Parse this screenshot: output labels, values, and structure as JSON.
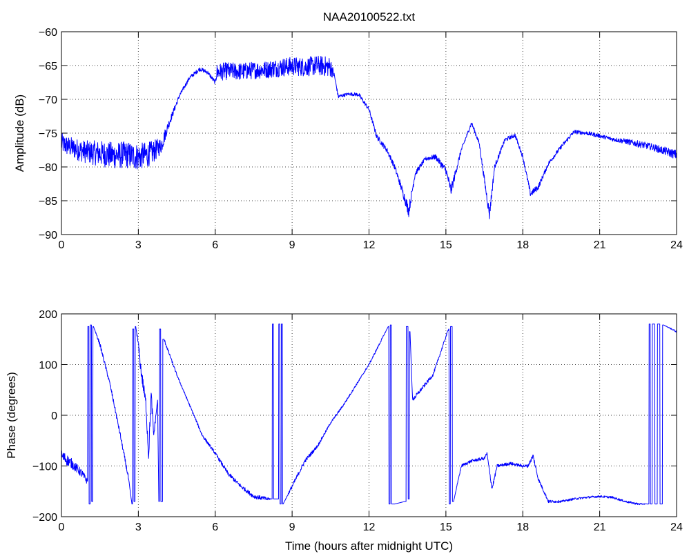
{
  "chart_data": [
    {
      "type": "line",
      "title": "NAA20100522.txt",
      "xlabel": "",
      "ylabel": "Amplitude (dB)",
      "xlim": [
        0,
        24
      ],
      "ylim": [
        -90,
        -60
      ],
      "xticks": [
        0,
        3,
        6,
        9,
        12,
        15,
        18,
        21,
        24
      ],
      "yticks": [
        -90,
        -85,
        -80,
        -75,
        -70,
        -65,
        -60
      ],
      "grid": true,
      "color": "#0000ff",
      "series": [
        {
          "x": [
            0,
            0.3,
            0.6,
            1.0,
            1.5,
            2.0,
            2.5,
            3.0,
            3.5,
            3.9,
            4.2,
            4.6,
            5.0,
            5.4,
            5.7,
            6.0,
            6.05,
            6.5,
            7.0,
            7.5,
            8.0,
            8.5,
            9.0,
            9.5,
            10.0,
            10.5,
            10.65,
            10.8,
            11.2,
            11.6,
            12.0,
            12.3,
            12.7,
            13.0,
            13.3,
            13.55,
            13.8,
            14.2,
            14.6,
            15.0,
            15.2,
            15.6,
            16.0,
            16.3,
            16.6,
            16.7,
            16.9,
            17.3,
            17.7,
            18.0,
            18.3,
            18.6,
            19.0,
            19.5,
            20.0,
            20.5,
            21.0,
            21.5,
            22.0,
            22.5,
            23.0,
            23.5,
            24.0
          ],
          "y": [
            -76.5,
            -77.0,
            -77.4,
            -77.8,
            -78.0,
            -78.3,
            -78.2,
            -78.5,
            -78.0,
            -76.8,
            -73.5,
            -69.5,
            -66.8,
            -65.5,
            -66.0,
            -67.5,
            -66.0,
            -65.8,
            -65.9,
            -65.7,
            -65.6,
            -65.3,
            -65.1,
            -65.2,
            -65.0,
            -65.2,
            -66.5,
            -69.6,
            -69.2,
            -69.3,
            -71.5,
            -75.5,
            -77.5,
            -80.0,
            -83.5,
            -86.5,
            -81.0,
            -78.8,
            -78.5,
            -80.5,
            -83.5,
            -77.5,
            -73.5,
            -76.5,
            -84.5,
            -87.0,
            -80.0,
            -76.0,
            -75.3,
            -78.5,
            -84.0,
            -83.0,
            -79.5,
            -77.0,
            -74.8,
            -75.0,
            -75.4,
            -75.9,
            -76.2,
            -76.6,
            -77.0,
            -77.6,
            -78.2
          ],
          "noise": [
            1.5,
            1.5,
            1.6,
            1.7,
            1.9,
            2.0,
            2.0,
            2.0,
            1.8,
            1.2,
            0.6,
            0.3,
            0.3,
            0.3,
            0.3,
            0.3,
            1.3,
            1.3,
            1.3,
            1.3,
            1.3,
            1.4,
            1.4,
            1.4,
            1.5,
            1.5,
            0.3,
            0.3,
            0.2,
            0.3,
            0.3,
            0.4,
            0.4,
            0.4,
            0.6,
            0.9,
            0.4,
            0.3,
            0.4,
            0.6,
            0.8,
            0.3,
            0.3,
            0.3,
            0.6,
            0.9,
            0.4,
            0.3,
            0.3,
            0.3,
            0.5,
            0.4,
            0.3,
            0.3,
            0.3,
            0.3,
            0.3,
            0.3,
            0.4,
            0.5,
            0.5,
            0.6,
            0.7
          ]
        }
      ]
    },
    {
      "type": "line",
      "title": "",
      "xlabel": "Time (hours after midnight UTC)",
      "ylabel": "Phase (degrees)",
      "xlim": [
        0,
        24
      ],
      "ylim": [
        -200,
        200
      ],
      "xticks": [
        0,
        3,
        6,
        9,
        12,
        15,
        18,
        21,
        24
      ],
      "yticks": [
        -200,
        -100,
        0,
        100,
        200
      ],
      "grid": true,
      "color": "#0000ff",
      "series": [
        {
          "x": [
            0,
            0.4,
            0.8,
            1.0,
            1.05,
            1.1,
            1.15,
            1.2,
            1.25,
            1.5,
            1.9,
            2.3,
            2.6,
            2.75,
            2.8,
            2.85,
            2.9,
            3.0,
            3.1,
            3.3,
            3.4,
            3.5,
            3.6,
            3.75,
            3.8,
            3.85,
            3.9,
            4.0,
            4.5,
            5.0,
            5.5,
            6.0,
            6.5,
            7.0,
            7.5,
            8.0,
            8.2,
            8.25,
            8.3,
            8.45,
            8.5,
            8.55,
            8.6,
            8.65,
            8.7,
            9.0,
            9.5,
            10.0,
            10.5,
            11.0,
            11.5,
            12.0,
            12.5,
            12.75,
            12.8,
            12.85,
            12.9,
            13.0,
            13.4,
            13.5,
            13.55,
            13.6,
            13.7,
            14.5,
            15.1,
            15.15,
            15.2,
            15.3,
            15.6,
            16.0,
            16.5,
            16.6,
            16.8,
            17.0,
            17.5,
            18.0,
            18.2,
            18.4,
            18.6,
            19.0,
            19.5,
            20.0,
            20.5,
            21.0,
            21.5,
            22.0,
            22.5,
            22.9,
            22.95,
            23.0,
            23.1,
            23.2,
            23.3,
            23.4,
            23.5,
            24.0
          ],
          "y": [
            -80,
            -95,
            -115,
            -130,
            175,
            -175,
            178,
            -170,
            175,
            140,
            60,
            -40,
            -120,
            -175,
            170,
            -170,
            175,
            140,
            90,
            20,
            -80,
            40,
            -40,
            30,
            -170,
            170,
            -170,
            150,
            80,
            20,
            -40,
            -75,
            -115,
            -140,
            -160,
            -165,
            -165,
            180,
            -165,
            -165,
            180,
            -175,
            180,
            -175,
            -170,
            -140,
            -90,
            -60,
            -15,
            20,
            60,
            100,
            150,
            175,
            -175,
            178,
            -175,
            -175,
            -170,
            175,
            -165,
            165,
            30,
            80,
            170,
            -175,
            175,
            -170,
            -100,
            -90,
            -85,
            -75,
            -145,
            -100,
            -95,
            -100,
            -100,
            -80,
            -125,
            -170,
            -170,
            -165,
            -162,
            -160,
            -162,
            -170,
            -175,
            -175,
            180,
            -175,
            180,
            -175,
            180,
            -175,
            178,
            165
          ],
          "noise": [
            12,
            10,
            8,
            6,
            0,
            0,
            0,
            0,
            0,
            4,
            4,
            5,
            5,
            0,
            0,
            0,
            0,
            8,
            12,
            14,
            14,
            14,
            10,
            0,
            0,
            0,
            0,
            3,
            2,
            2,
            3,
            3,
            4,
            4,
            4,
            4,
            0,
            0,
            0,
            0,
            0,
            0,
            0,
            0,
            0,
            4,
            4,
            3,
            2,
            2,
            2,
            2,
            2,
            0,
            0,
            0,
            0,
            0,
            0,
            0,
            0,
            0,
            4,
            3,
            2,
            0,
            0,
            0,
            3,
            3,
            3,
            3,
            5,
            3,
            3,
            3,
            3,
            5,
            3,
            3,
            2,
            2,
            2,
            2,
            2,
            2,
            2,
            0,
            0,
            0,
            0,
            0,
            0,
            0,
            0,
            2
          ]
        }
      ]
    }
  ]
}
